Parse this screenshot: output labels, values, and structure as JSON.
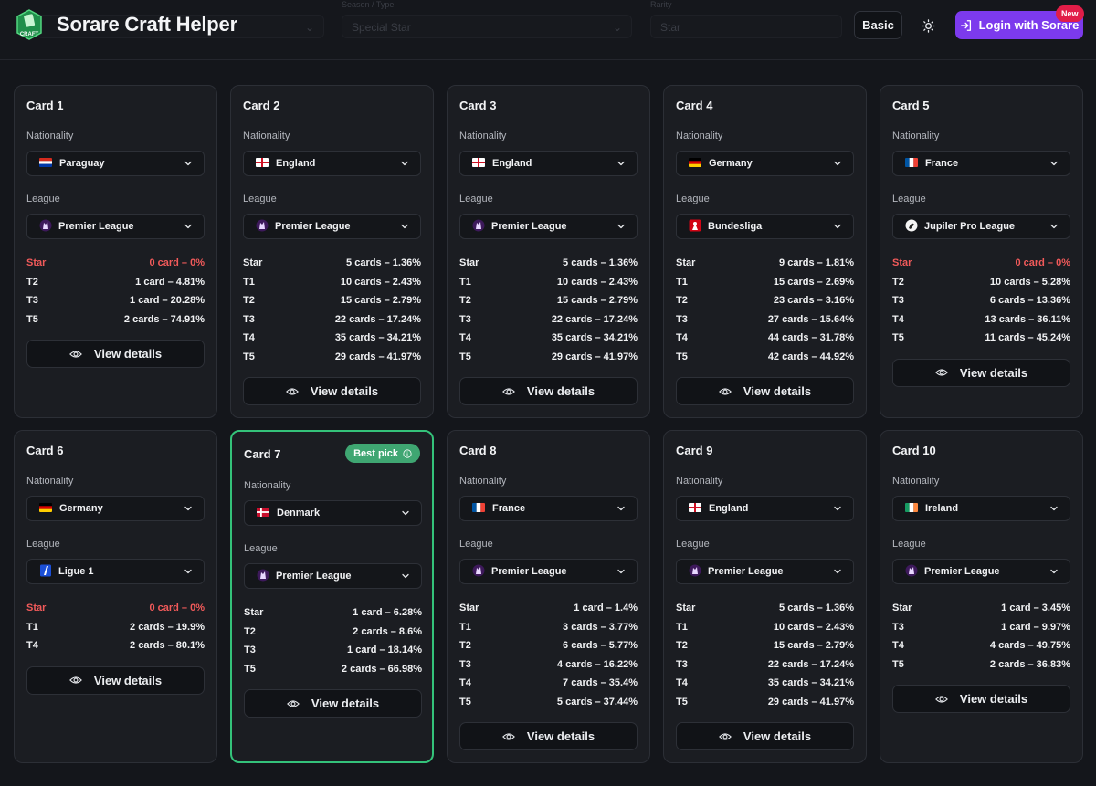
{
  "app": {
    "title": "Sorare Craft Helper",
    "logo_text": "CRAFT"
  },
  "header": {
    "ghost_fields": [
      {
        "label": "",
        "value": ""
      },
      {
        "label": "Season / Type",
        "value": "Special Star"
      },
      {
        "label": "Rarity",
        "value": "Star"
      }
    ],
    "basic_label": "Basic",
    "login_label": "Login with Sorare",
    "new_badge": "New",
    "accent_color": "#7c3aed"
  },
  "cards": [
    {
      "title": "Card 1",
      "nationality_label": "Nationality",
      "nationality": "Paraguay",
      "flag": "paraguay",
      "league_label": "League",
      "league": "Premier League",
      "league_icon": "premier-league-icon",
      "tiers": [
        {
          "tier": "Star",
          "value": "0 card – 0%",
          "zero": true
        },
        {
          "tier": "T2",
          "value": "1 card – 4.81%"
        },
        {
          "tier": "T3",
          "value": "1 card – 20.28%"
        },
        {
          "tier": "T5",
          "value": "2 cards – 74.91%"
        }
      ],
      "view_label": "View details"
    },
    {
      "title": "Card 2",
      "nationality_label": "Nationality",
      "nationality": "England",
      "flag": "england",
      "league_label": "League",
      "league": "Premier League",
      "league_icon": "premier-league-icon",
      "tiers": [
        {
          "tier": "Star",
          "value": "5 cards – 1.36%"
        },
        {
          "tier": "T1",
          "value": "10 cards – 2.43%"
        },
        {
          "tier": "T2",
          "value": "15 cards – 2.79%"
        },
        {
          "tier": "T3",
          "value": "22 cards – 17.24%"
        },
        {
          "tier": "T4",
          "value": "35 cards – 34.21%"
        },
        {
          "tier": "T5",
          "value": "29 cards – 41.97%"
        }
      ],
      "view_label": "View details"
    },
    {
      "title": "Card 3",
      "nationality_label": "Nationality",
      "nationality": "England",
      "flag": "england",
      "league_label": "League",
      "league": "Premier League",
      "league_icon": "premier-league-icon",
      "tiers": [
        {
          "tier": "Star",
          "value": "5 cards – 1.36%"
        },
        {
          "tier": "T1",
          "value": "10 cards – 2.43%"
        },
        {
          "tier": "T2",
          "value": "15 cards – 2.79%"
        },
        {
          "tier": "T3",
          "value": "22 cards – 17.24%"
        },
        {
          "tier": "T4",
          "value": "35 cards – 34.21%"
        },
        {
          "tier": "T5",
          "value": "29 cards – 41.97%"
        }
      ],
      "view_label": "View details"
    },
    {
      "title": "Card 4",
      "nationality_label": "Nationality",
      "nationality": "Germany",
      "flag": "germany",
      "league_label": "League",
      "league": "Bundesliga",
      "league_icon": "bundesliga-icon",
      "tiers": [
        {
          "tier": "Star",
          "value": "9 cards – 1.81%"
        },
        {
          "tier": "T1",
          "value": "15 cards – 2.69%"
        },
        {
          "tier": "T2",
          "value": "23 cards – 3.16%"
        },
        {
          "tier": "T3",
          "value": "27 cards – 15.64%"
        },
        {
          "tier": "T4",
          "value": "44 cards – 31.78%"
        },
        {
          "tier": "T5",
          "value": "42 cards – 44.92%"
        }
      ],
      "view_label": "View details"
    },
    {
      "title": "Card 5",
      "nationality_label": "Nationality",
      "nationality": "France",
      "flag": "france",
      "league_label": "League",
      "league": "Jupiler Pro League",
      "league_icon": "jupiler-pro-league-icon",
      "tiers": [
        {
          "tier": "Star",
          "value": "0 card – 0%",
          "zero": true
        },
        {
          "tier": "T2",
          "value": "10 cards – 5.28%"
        },
        {
          "tier": "T3",
          "value": "6 cards – 13.36%"
        },
        {
          "tier": "T4",
          "value": "13 cards – 36.11%"
        },
        {
          "tier": "T5",
          "value": "11 cards – 45.24%"
        }
      ],
      "view_label": "View details"
    },
    {
      "title": "Card 6",
      "nationality_label": "Nationality",
      "nationality": "Germany",
      "flag": "germany",
      "league_label": "League",
      "league": "Ligue 1",
      "league_icon": "ligue-1-icon",
      "tiers": [
        {
          "tier": "Star",
          "value": "0 card – 0%",
          "zero": true
        },
        {
          "tier": "T1",
          "value": "2 cards – 19.9%"
        },
        {
          "tier": "T4",
          "value": "2 cards – 80.1%"
        }
      ],
      "view_label": "View details"
    },
    {
      "title": "Card 7",
      "best": true,
      "best_label": "Best pick",
      "nationality_label": "Nationality",
      "nationality": "Denmark",
      "flag": "denmark",
      "league_label": "League",
      "league": "Premier League",
      "league_icon": "premier-league-icon",
      "tiers": [
        {
          "tier": "Star",
          "value": "1 card – 6.28%"
        },
        {
          "tier": "T2",
          "value": "2 cards – 8.6%"
        },
        {
          "tier": "T3",
          "value": "1 card – 18.14%"
        },
        {
          "tier": "T5",
          "value": "2 cards – 66.98%"
        }
      ],
      "view_label": "View details"
    },
    {
      "title": "Card 8",
      "nationality_label": "Nationality",
      "nationality": "France",
      "flag": "france",
      "league_label": "League",
      "league": "Premier League",
      "league_icon": "premier-league-icon",
      "tiers": [
        {
          "tier": "Star",
          "value": "1 card – 1.4%"
        },
        {
          "tier": "T1",
          "value": "3 cards – 3.77%"
        },
        {
          "tier": "T2",
          "value": "6 cards – 5.77%"
        },
        {
          "tier": "T3",
          "value": "4 cards – 16.22%"
        },
        {
          "tier": "T4",
          "value": "7 cards – 35.4%"
        },
        {
          "tier": "T5",
          "value": "5 cards – 37.44%"
        }
      ],
      "view_label": "View details"
    },
    {
      "title": "Card 9",
      "nationality_label": "Nationality",
      "nationality": "England",
      "flag": "england",
      "league_label": "League",
      "league": "Premier League",
      "league_icon": "premier-league-icon",
      "tiers": [
        {
          "tier": "Star",
          "value": "5 cards – 1.36%"
        },
        {
          "tier": "T1",
          "value": "10 cards – 2.43%"
        },
        {
          "tier": "T2",
          "value": "15 cards – 2.79%"
        },
        {
          "tier": "T3",
          "value": "22 cards – 17.24%"
        },
        {
          "tier": "T4",
          "value": "35 cards – 34.21%"
        },
        {
          "tier": "T5",
          "value": "29 cards – 41.97%"
        }
      ],
      "view_label": "View details"
    },
    {
      "title": "Card 10",
      "nationality_label": "Nationality",
      "nationality": "Ireland",
      "flag": "ireland",
      "league_label": "League",
      "league": "Premier League",
      "league_icon": "premier-league-icon",
      "tiers": [
        {
          "tier": "Star",
          "value": "1 card – 3.45%"
        },
        {
          "tier": "T3",
          "value": "1 card – 9.97%"
        },
        {
          "tier": "T4",
          "value": "4 cards – 49.75%"
        },
        {
          "tier": "T5",
          "value": "2 cards – 36.83%"
        }
      ],
      "view_label": "View details"
    }
  ]
}
